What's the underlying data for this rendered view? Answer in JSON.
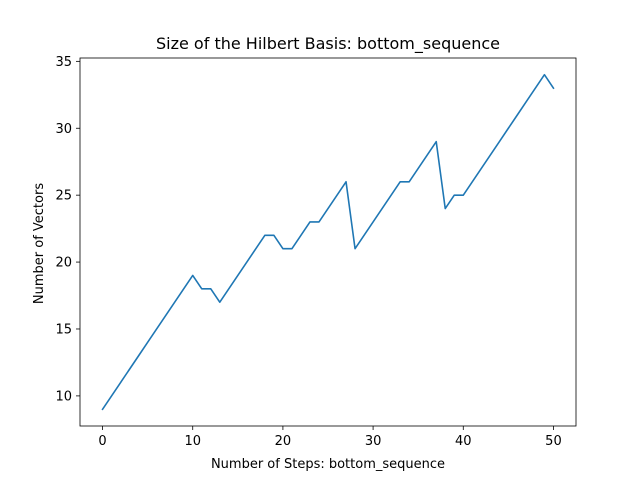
{
  "chart_data": {
    "type": "line",
    "title": "Size of the Hilbert Basis: bottom_sequence",
    "xlabel": "Number of Steps: bottom_sequence",
    "ylabel": "Number of Vectors",
    "xlim": [
      -2.5,
      52.5
    ],
    "ylim": [
      7.75,
      35.25
    ],
    "xticks": [
      0,
      10,
      20,
      30,
      40,
      50
    ],
    "yticks": [
      10,
      15,
      20,
      25,
      30,
      35
    ],
    "grid": false,
    "colors": {
      "line": "#1f77b4",
      "axes": "#000000",
      "background": "#ffffff"
    },
    "series": [
      {
        "x": [
          0,
          1,
          2,
          3,
          4,
          5,
          6,
          7,
          8,
          9,
          10,
          11,
          12,
          13,
          14,
          15,
          16,
          17,
          18,
          19,
          20,
          21,
          22,
          23,
          24,
          25,
          26,
          27,
          28,
          29,
          30,
          31,
          32,
          33,
          34,
          35,
          36,
          37,
          38,
          39,
          40,
          41,
          42,
          43,
          44,
          45,
          46,
          47,
          48,
          49,
          50
        ],
        "y": [
          9,
          10,
          11,
          12,
          13,
          14,
          15,
          16,
          17,
          18,
          19,
          18,
          18,
          17,
          18,
          19,
          20,
          21,
          22,
          22,
          21,
          21,
          22,
          23,
          23,
          24,
          25,
          26,
          21,
          22,
          23,
          24,
          25,
          26,
          26,
          27,
          28,
          29,
          24,
          25,
          25,
          26,
          27,
          28,
          29,
          30,
          31,
          32,
          33,
          34,
          33
        ]
      }
    ]
  }
}
